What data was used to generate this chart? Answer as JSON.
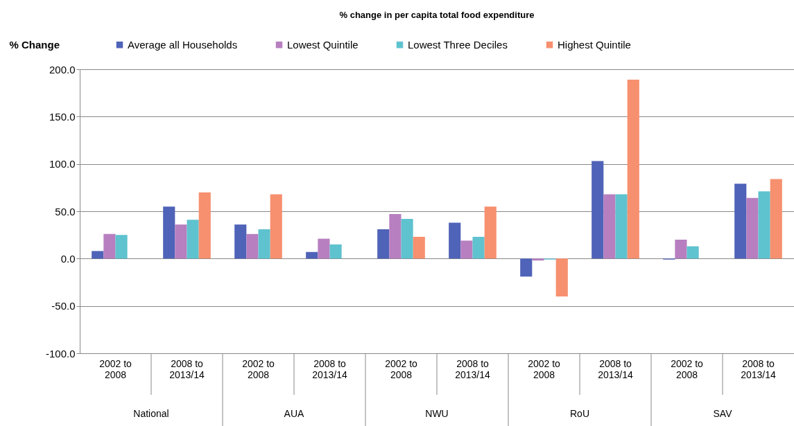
{
  "chart_data": {
    "type": "bar",
    "title": "% change in per capita total food expenditure",
    "ylabel": "% Change",
    "categories": [
      "2002 to 2008",
      "2008 to 2013/14",
      "2002 to 2008",
      "2008 to 2013/14",
      "2002 to 2008",
      "2008 to 2013/14",
      "2002 to 2008",
      "2008 to 2013/14",
      "2002 to 2008",
      "2008 to 2013/14"
    ],
    "annotations": [
      "National",
      "AUA",
      "NWU",
      "RoU",
      "SAV"
    ],
    "series": [
      {
        "name": "Average all Households",
        "color": "#4f63b8",
        "values": [
          8,
          55,
          36,
          7,
          31,
          38,
          -19,
          103,
          -1,
          79
        ]
      },
      {
        "name": "Lowest Quintile",
        "color": "#b77fc0",
        "values": [
          26,
          36,
          26,
          21,
          47,
          19,
          -2,
          68,
          20,
          64
        ]
      },
      {
        "name": "Lowest Three Deciles",
        "color": "#5fc2cf",
        "values": [
          25,
          41,
          31,
          15,
          42,
          23,
          -1,
          68,
          13,
          71
        ]
      },
      {
        "name": "Highest Quintile",
        "color": "#f7906f",
        "values": [
          0,
          70,
          68,
          0,
          23,
          55,
          -40,
          189,
          0,
          84
        ]
      }
    ],
    "ylim": [
      -100,
      200
    ],
    "yticks": [
      {
        "value": -100,
        "label": "-100.0"
      },
      {
        "value": -50,
        "label": "-50.0"
      },
      {
        "value": 0,
        "label": "0.0"
      },
      {
        "value": 50,
        "label": "50.0"
      },
      {
        "value": 100,
        "label": "100.0"
      },
      {
        "value": 150,
        "label": "150.0"
      },
      {
        "value": 200,
        "label": "200.0"
      }
    ],
    "grid": "y",
    "legend": "top"
  }
}
